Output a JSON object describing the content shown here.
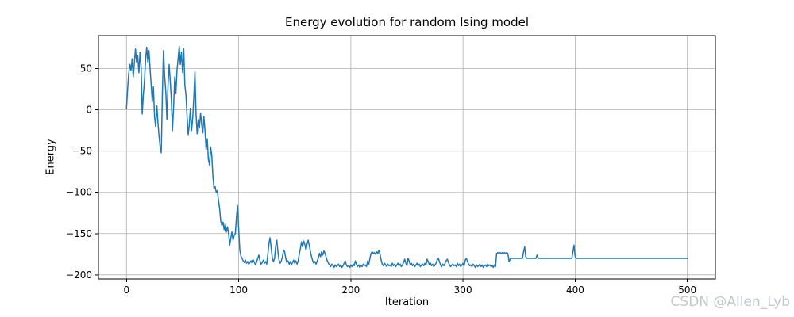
{
  "watermark": "CSDN @Allen_Lyb",
  "chart_data": {
    "type": "line",
    "title": "Energy evolution for random Ising model",
    "xlabel": "Iteration",
    "ylabel": "Energy",
    "xlim": [
      -25,
      525
    ],
    "ylim": [
      -205,
      90
    ],
    "xticks": [
      0,
      100,
      200,
      300,
      400,
      500
    ],
    "yticks": [
      50,
      0,
      -50,
      -100,
      -150,
      -200
    ],
    "grid": true,
    "legend": "none",
    "line_color": "#1f77b4",
    "grid_color": "#b0b0b0",
    "series": [
      {
        "name": "energy",
        "x_start": 0,
        "x_step": 1,
        "values": [
          2,
          25,
          44,
          55,
          48,
          62,
          40,
          57,
          74,
          58,
          66,
          45,
          70,
          52,
          -5,
          18,
          35,
          60,
          76,
          58,
          72,
          50,
          30,
          10,
          28,
          -8,
          -20,
          5,
          -15,
          -32,
          -45,
          -52,
          20,
          72,
          40,
          22,
          -12,
          30,
          55,
          35,
          12,
          -25,
          5,
          40,
          20,
          48,
          62,
          77,
          55,
          70,
          45,
          74,
          30,
          18,
          -8,
          -30,
          -18,
          2,
          -25,
          -10,
          15,
          46,
          -5,
          -29,
          -12,
          -22,
          -4,
          -18,
          -28,
          -8,
          -25,
          -48,
          -35,
          -60,
          -67,
          -45,
          -55,
          -80,
          -95,
          -93,
          -100,
          -98,
          -110,
          -120,
          -135,
          -140,
          -136,
          -145,
          -138,
          -148,
          -142,
          -150,
          -164,
          -155,
          -148,
          -158,
          -152,
          -150,
          -130,
          -116,
          -145,
          -170,
          -177,
          -180,
          -183,
          -185,
          -182,
          -186,
          -184,
          -187,
          -185,
          -183,
          -186,
          -182,
          -185,
          -188,
          -184,
          -180,
          -176,
          -183,
          -187,
          -185,
          -182,
          -186,
          -184,
          -187,
          -175,
          -162,
          -155,
          -168,
          -180,
          -184,
          -180,
          -165,
          -158,
          -172,
          -182,
          -186,
          -183,
          -178,
          -170,
          -172,
          -180,
          -185,
          -183,
          -187,
          -184,
          -188,
          -185,
          -182,
          -186,
          -183,
          -187,
          -183,
          -175,
          -168,
          -160,
          -166,
          -159,
          -163,
          -170,
          -162,
          -158,
          -165,
          -172,
          -178,
          -183,
          -186,
          -184,
          -187,
          -183,
          -180,
          -174,
          -178,
          -172,
          -176,
          -171,
          -174,
          -179,
          -183,
          -186,
          -188,
          -190,
          -187,
          -189,
          -191,
          -188,
          -190,
          -189,
          -187,
          -190,
          -188,
          -191,
          -189,
          -186,
          -183,
          -188,
          -190,
          -189,
          -191,
          -188,
          -190,
          -187,
          -189,
          -183,
          -187,
          -190,
          -188,
          -191,
          -189,
          -190,
          -187,
          -189,
          -188,
          -190,
          -183,
          -187,
          -180,
          -174,
          -172,
          -174,
          -173,
          -175,
          -172,
          -174,
          -170,
          -175,
          -182,
          -187,
          -189,
          -186,
          -188,
          -190,
          -187,
          -189,
          -188,
          -190,
          -186,
          -189,
          -187,
          -190,
          -188,
          -186,
          -189,
          -187,
          -190,
          -188,
          -185,
          -181,
          -186,
          -189,
          -180,
          -183,
          -188,
          -186,
          -189,
          -187,
          -190,
          -188,
          -186,
          -189,
          -187,
          -190,
          -188,
          -187,
          -189,
          -186,
          -188,
          -181,
          -184,
          -188,
          -186,
          -189,
          -187,
          -190,
          -188,
          -186,
          -182,
          -180,
          -184,
          -188,
          -190,
          -187,
          -189,
          -186,
          -183,
          -181,
          -185,
          -188,
          -190,
          -188,
          -187,
          -189,
          -188,
          -190,
          -186,
          -189,
          -187,
          -190,
          -188,
          -186,
          -189,
          -182,
          -180,
          -184,
          -187,
          -189,
          -188,
          -190,
          -187,
          -189,
          -191,
          -188,
          -190,
          -189,
          -187,
          -190,
          -188,
          -191,
          -189,
          -188,
          -190,
          -187,
          -189,
          -188,
          -190,
          -189,
          -191,
          -188,
          -190,
          -174,
          -173,
          -174,
          -173,
          -174,
          -173,
          -174,
          -173,
          -174,
          -173,
          -174,
          -184,
          -181,
          -180,
          -180,
          -180,
          -180,
          -180,
          -180,
          -180,
          -180,
          -180,
          -180,
          -180,
          -172,
          -166,
          -178,
          -180,
          -180,
          -180,
          -180,
          -180,
          -180,
          -180,
          -180,
          -180,
          -176,
          -180,
          -180,
          -180,
          -180,
          -180,
          -180,
          -180,
          -180,
          -180,
          -180,
          -180,
          -180,
          -180,
          -180,
          -180,
          -180,
          -180,
          -180,
          -180,
          -180,
          -180,
          -180,
          -180,
          -180,
          -180,
          -180,
          -180,
          -180,
          -180,
          -180,
          -180,
          -172,
          -164,
          -178,
          -180,
          -180,
          -180,
          -180,
          -180,
          -180,
          -180,
          -180,
          -180,
          -180,
          -180,
          -180,
          -180,
          -180,
          -180,
          -180,
          -180,
          -180,
          -180,
          -180,
          -180,
          -180,
          -180,
          -180,
          -180,
          -180,
          -180,
          -180,
          -180,
          -180,
          -180,
          -180,
          -180,
          -180,
          -180,
          -180,
          -180,
          -180,
          -180,
          -180,
          -180,
          -180,
          -180,
          -180,
          -180,
          -180,
          -180,
          -180,
          -180,
          -180,
          -180,
          -180,
          -180,
          -180,
          -180,
          -180,
          -180,
          -180,
          -180,
          -180,
          -180,
          -180,
          -180,
          -180,
          -180,
          -180,
          -180,
          -180,
          -180,
          -180,
          -180,
          -180,
          -180,
          -180,
          -180,
          -180,
          -180,
          -180,
          -180,
          -180,
          -180,
          -180,
          -180,
          -180,
          -180,
          -180,
          -180,
          -180,
          -180,
          -180,
          -180,
          -180,
          -180,
          -180,
          -180,
          -180,
          -180,
          -180,
          -180,
          -180
        ]
      }
    ]
  }
}
